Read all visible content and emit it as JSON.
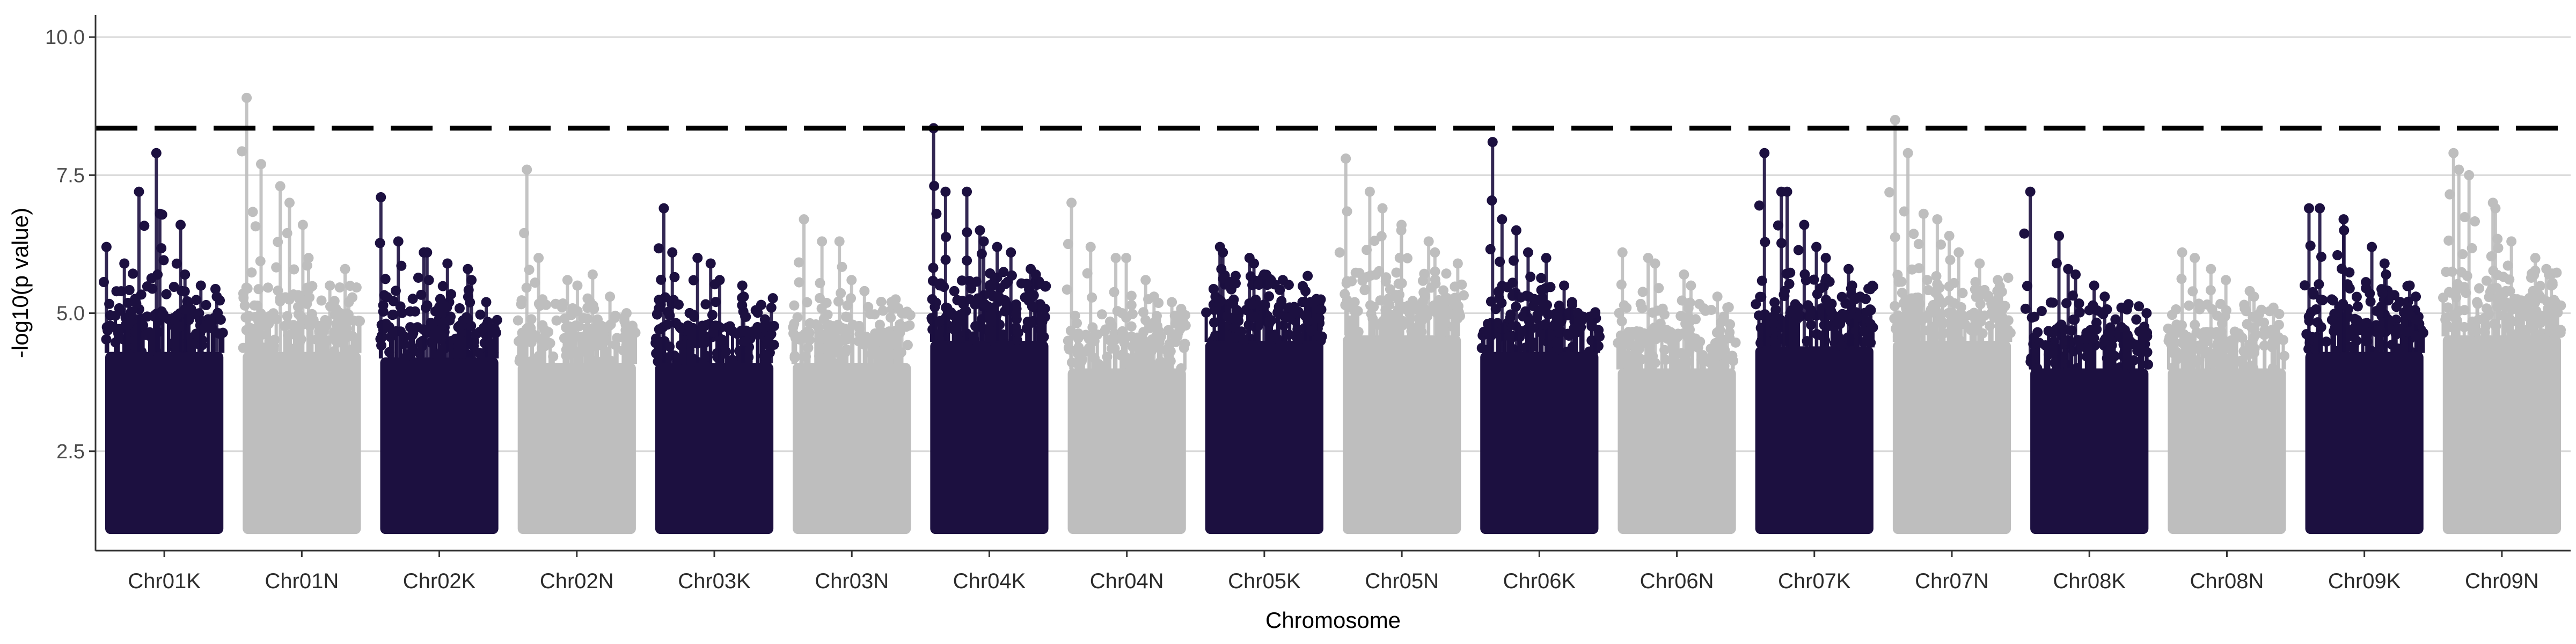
{
  "chart_data": {
    "type": "scatter",
    "title": "",
    "xlabel": "Chromosome",
    "ylabel": "-log10(p value)",
    "ylim": [
      0.7,
      10.4
    ],
    "yticks": [
      2.5,
      5.0,
      7.5,
      10.0
    ],
    "ytick_labels": [
      "2.5",
      "5.0",
      "7.5",
      "10.0"
    ],
    "grid": true,
    "legend": "none",
    "threshold": 8.35,
    "min_value": 1.0,
    "colors": {
      "dark": "#1c1040",
      "light": "#bebebe",
      "threshold": "#000000",
      "grid": "#d9d9d9"
    },
    "categories": [
      "Chr01K",
      "Chr01N",
      "Chr02K",
      "Chr02N",
      "Chr03K",
      "Chr03N",
      "Chr04K",
      "Chr04N",
      "Chr05K",
      "Chr05N",
      "Chr06K",
      "Chr06N",
      "Chr07K",
      "Chr07N",
      "Chr08K",
      "Chr08N",
      "Chr09K",
      "Chr09N"
    ],
    "series": [
      {
        "chromosome": "Chr01K",
        "color": "dark",
        "body_max": 4.3,
        "peaks": [
          6.2,
          5.9,
          7.2,
          7.9,
          6.8,
          6.6,
          5.7,
          5.5,
          5.3
        ]
      },
      {
        "chromosome": "Chr01N",
        "color": "light",
        "body_max": 4.3,
        "peaks": [
          8.9,
          7.7,
          7.3,
          7.0,
          6.6,
          6.0,
          5.5,
          5.8,
          5.2
        ]
      },
      {
        "chromosome": "Chr02K",
        "color": "dark",
        "body_max": 4.2,
        "peaks": [
          7.1,
          6.3,
          6.1,
          6.1,
          5.9,
          5.8,
          5.6,
          5.2
        ]
      },
      {
        "chromosome": "Chr02N",
        "color": "light",
        "body_max": 4.1,
        "peaks": [
          7.6,
          6.0,
          5.6,
          5.5,
          5.7,
          5.3,
          5.0
        ]
      },
      {
        "chromosome": "Chr03K",
        "color": "dark",
        "body_max": 4.1,
        "peaks": [
          6.9,
          6.1,
          6.0,
          5.9,
          5.6,
          5.5,
          5.3,
          5.1
        ]
      },
      {
        "chromosome": "Chr03N",
        "color": "light",
        "body_max": 4.1,
        "peaks": [
          6.7,
          6.3,
          6.3,
          5.6,
          5.4,
          5.2,
          5.0
        ]
      },
      {
        "chromosome": "Chr04K",
        "color": "dark",
        "body_max": 4.5,
        "peaks": [
          8.35,
          7.2,
          7.2,
          6.5,
          6.3,
          6.2,
          6.1,
          5.8,
          5.7
        ]
      },
      {
        "chromosome": "Chr04N",
        "color": "light",
        "body_max": 4.0,
        "peaks": [
          7.0,
          6.2,
          6.0,
          6.0,
          5.6,
          5.3,
          5.2
        ]
      },
      {
        "chromosome": "Chr05K",
        "color": "dark",
        "body_max": 4.5,
        "peaks": [
          6.2,
          6.1,
          6.0,
          5.9,
          5.7,
          5.6,
          5.4,
          5.2
        ]
      },
      {
        "chromosome": "Chr05N",
        "color": "light",
        "body_max": 4.6,
        "peaks": [
          7.8,
          7.2,
          6.9,
          6.6,
          6.5,
          6.3,
          6.1,
          5.9
        ]
      },
      {
        "chromosome": "Chr06K",
        "color": "dark",
        "body_max": 4.3,
        "peaks": [
          8.1,
          6.7,
          6.5,
          6.1,
          6.0,
          5.5,
          5.2,
          5.0
        ]
      },
      {
        "chromosome": "Chr06N",
        "color": "light",
        "body_max": 4.0,
        "peaks": [
          6.1,
          6.0,
          5.9,
          5.7,
          5.5,
          5.3,
          5.1
        ]
      },
      {
        "chromosome": "Chr07K",
        "color": "dark",
        "body_max": 4.4,
        "peaks": [
          7.9,
          7.2,
          7.2,
          6.6,
          6.2,
          6.0,
          5.8,
          5.5,
          5.3
        ]
      },
      {
        "chromosome": "Chr07N",
        "color": "light",
        "body_max": 4.5,
        "peaks": [
          8.5,
          7.9,
          6.8,
          6.7,
          6.4,
          6.1,
          5.9,
          5.6,
          5.4
        ]
      },
      {
        "chromosome": "Chr08K",
        "color": "dark",
        "body_max": 4.0,
        "peaks": [
          7.2,
          6.4,
          5.8,
          5.7,
          5.5,
          5.3,
          5.1,
          5.0
        ]
      },
      {
        "chromosome": "Chr08N",
        "color": "light",
        "body_max": 4.0,
        "peaks": [
          6.1,
          6.0,
          5.8,
          5.6,
          5.4,
          5.3,
          5.1
        ]
      },
      {
        "chromosome": "Chr09K",
        "color": "dark",
        "body_max": 4.3,
        "peaks": [
          6.9,
          6.9,
          6.7,
          6.5,
          6.2,
          5.9,
          5.7,
          5.5,
          5.3
        ]
      },
      {
        "chromosome": "Chr09N",
        "color": "light",
        "body_max": 4.6,
        "peaks": [
          7.9,
          7.6,
          7.5,
          7.0,
          6.9,
          6.3,
          6.0,
          5.8,
          5.5
        ]
      }
    ]
  }
}
